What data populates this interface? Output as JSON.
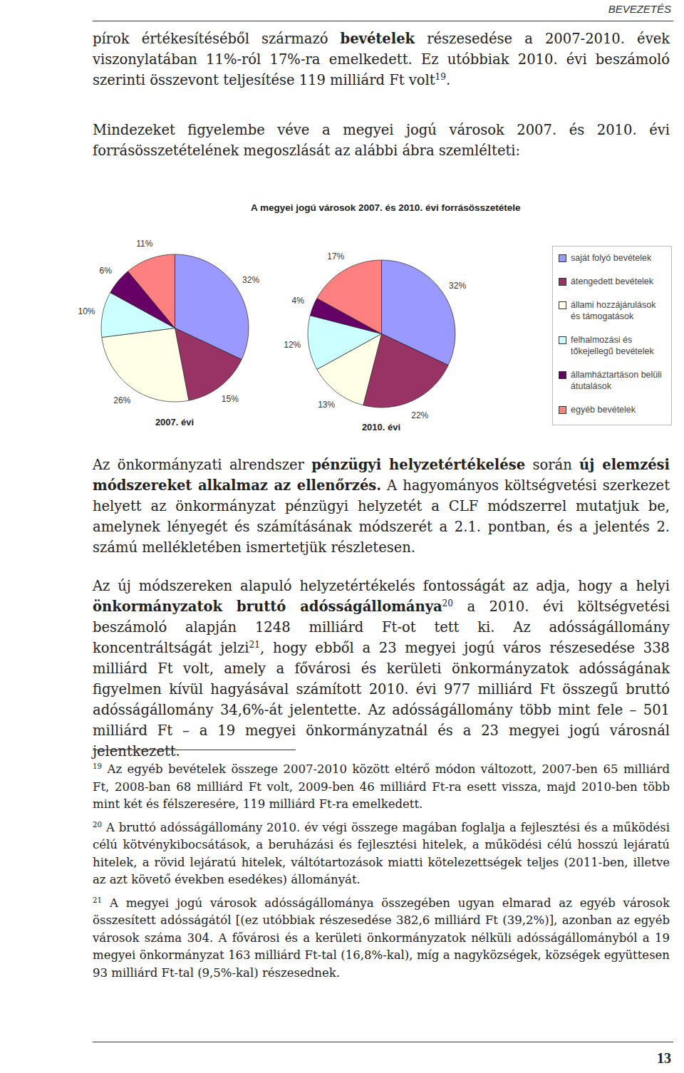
{
  "header": "BEVEZETÉS",
  "text_before_chart": [
    [
      {
        "t": "pírok értékesítéséből származó "
      },
      {
        "t": "bevételek",
        "b": true
      },
      {
        "t": " részesedése a 2007-2010. évek viszonylatában 11%-ról 17%-ra emelkedett. Ez utóbbiak 2010. évi beszámoló szerinti összevont teljesítése 119 milliárd Ft volt"
      },
      {
        "sup": "19"
      },
      {
        "t": "."
      }
    ],
    [
      {
        "t": "Mindezeket figyelembe véve a megyei jogú városok 2007. és 2010. évi forrásösszetételének megoszlását az alábbi ábra szemlélteti:"
      }
    ]
  ],
  "chart_data": {
    "type": "pie",
    "title": "A megyei jogú városok 2007. és 2010. évi forrásösszetétele",
    "categories": [
      "saját folyó bevételek",
      "átengedett bevételek",
      "állami hozzájárulások és támogatások",
      "felhalmozási és tőkejellegű bevételek",
      "államháztartáson belüli átutalások",
      "egyéb bevételek"
    ],
    "colors": [
      "#9999FF",
      "#993366",
      "#FFFFE8",
      "#CCFFFF",
      "#660066",
      "#FF8080"
    ],
    "series": [
      {
        "name": "2007. évi",
        "values": [
          32,
          15,
          26,
          10,
          6,
          11
        ],
        "value_labels": [
          "32%",
          "15%",
          "26%",
          "10%",
          "6%",
          "11%"
        ]
      },
      {
        "name": "2010. évi",
        "values": [
          32,
          22,
          13,
          12,
          4,
          17
        ],
        "value_labels": [
          "32%",
          "22%",
          "13%",
          "12%",
          "4%",
          "17%"
        ]
      }
    ],
    "data_labels": true,
    "legend": "right"
  },
  "text_after_chart": [
    [
      {
        "t": "Az önkormányzati alrendszer "
      },
      {
        "t": "pénzügyi helyzetértékelése",
        "b": true
      },
      {
        "t": " során "
      },
      {
        "t": "új elemzési módszereket alkalmaz az ellenőrzés.",
        "b": true
      },
      {
        "t": " A hagyományos költségvetési szerkezet helyett az önkormányzat pénzügyi helyzetét a CLF módszerrel mutatjuk be, amelynek lényegét és számításának módszerét a 2.1. pontban, és a jelentés 2. számú mellékletében ismertetjük részletesen."
      }
    ],
    [
      {
        "t": "Az új módszereken alapuló helyzetértékelés fontosságát az adja, hogy a helyi "
      },
      {
        "t": "önkormányzatok bruttó adósságállománya",
        "b": true
      },
      {
        "sup": "20"
      },
      {
        "t": " a 2010. évi költségvetési beszámoló alapján 1248 milliárd Ft-ot tett ki. Az adósságállomány koncentráltságát jelzi"
      },
      {
        "sup": "21"
      },
      {
        "t": ", hogy ebből a 23 megyei jogú város részesedése 338 milliárd Ft volt, amely a fővárosi és kerületi önkormányzatok adósságának figyelmen kívül hagyásával számított 2010. évi 977 milliárd Ft összegű bruttó adósságállomány 34,6%-át jelentette. Az adósságállomány több mint fele – 501 milliárd Ft – a 19 megyei önkormányzatnál és a 23 megyei jogú városnál jelentkezett."
      }
    ]
  ],
  "footnotes": [
    {
      "number": "19",
      "text": "Az egyéb bevételek összege 2007-2010 között eltérő módon változott, 2007-ben 65 milliárd Ft, 2008-ban 68 milliárd Ft volt, 2009-ben 46 milliárd Ft-ra esett vissza, majd 2010-ben több mint két és félszeresére, 119 milliárd Ft-ra emelkedett."
    },
    {
      "number": "20",
      "text": "A bruttó adósságállomány 2010. év végi összege magában foglalja a fejlesztési és a működési célú kötvénykibocsátások, a beruházási és fejlesztési hitelek, a működési célú hosszú lejáratú hitelek, a rövid lejáratú hitelek, váltótartozások miatti kötelezettségek teljes (2011-ben, illetve az azt követő években esedékes) állományát."
    },
    {
      "number": "21",
      "text": "A megyei jogú városok adósságállománya összegében ugyan elmarad az egyéb városok összesített adósságától [(ez utóbbiak részesedése 382,6 milliárd Ft (39,2%)], azonban az egyéb városok száma 304. A fővárosi és a kerületi önkormányzatok nélküli adósságállományból a 19 megyei önkormányzat 163 milliárd Ft-tal (16,8%-kal), míg a nagyközségek, községek együttesen 93 milliárd Ft-tal (9,5%-kal) részesednek."
    }
  ],
  "page_number": "13"
}
